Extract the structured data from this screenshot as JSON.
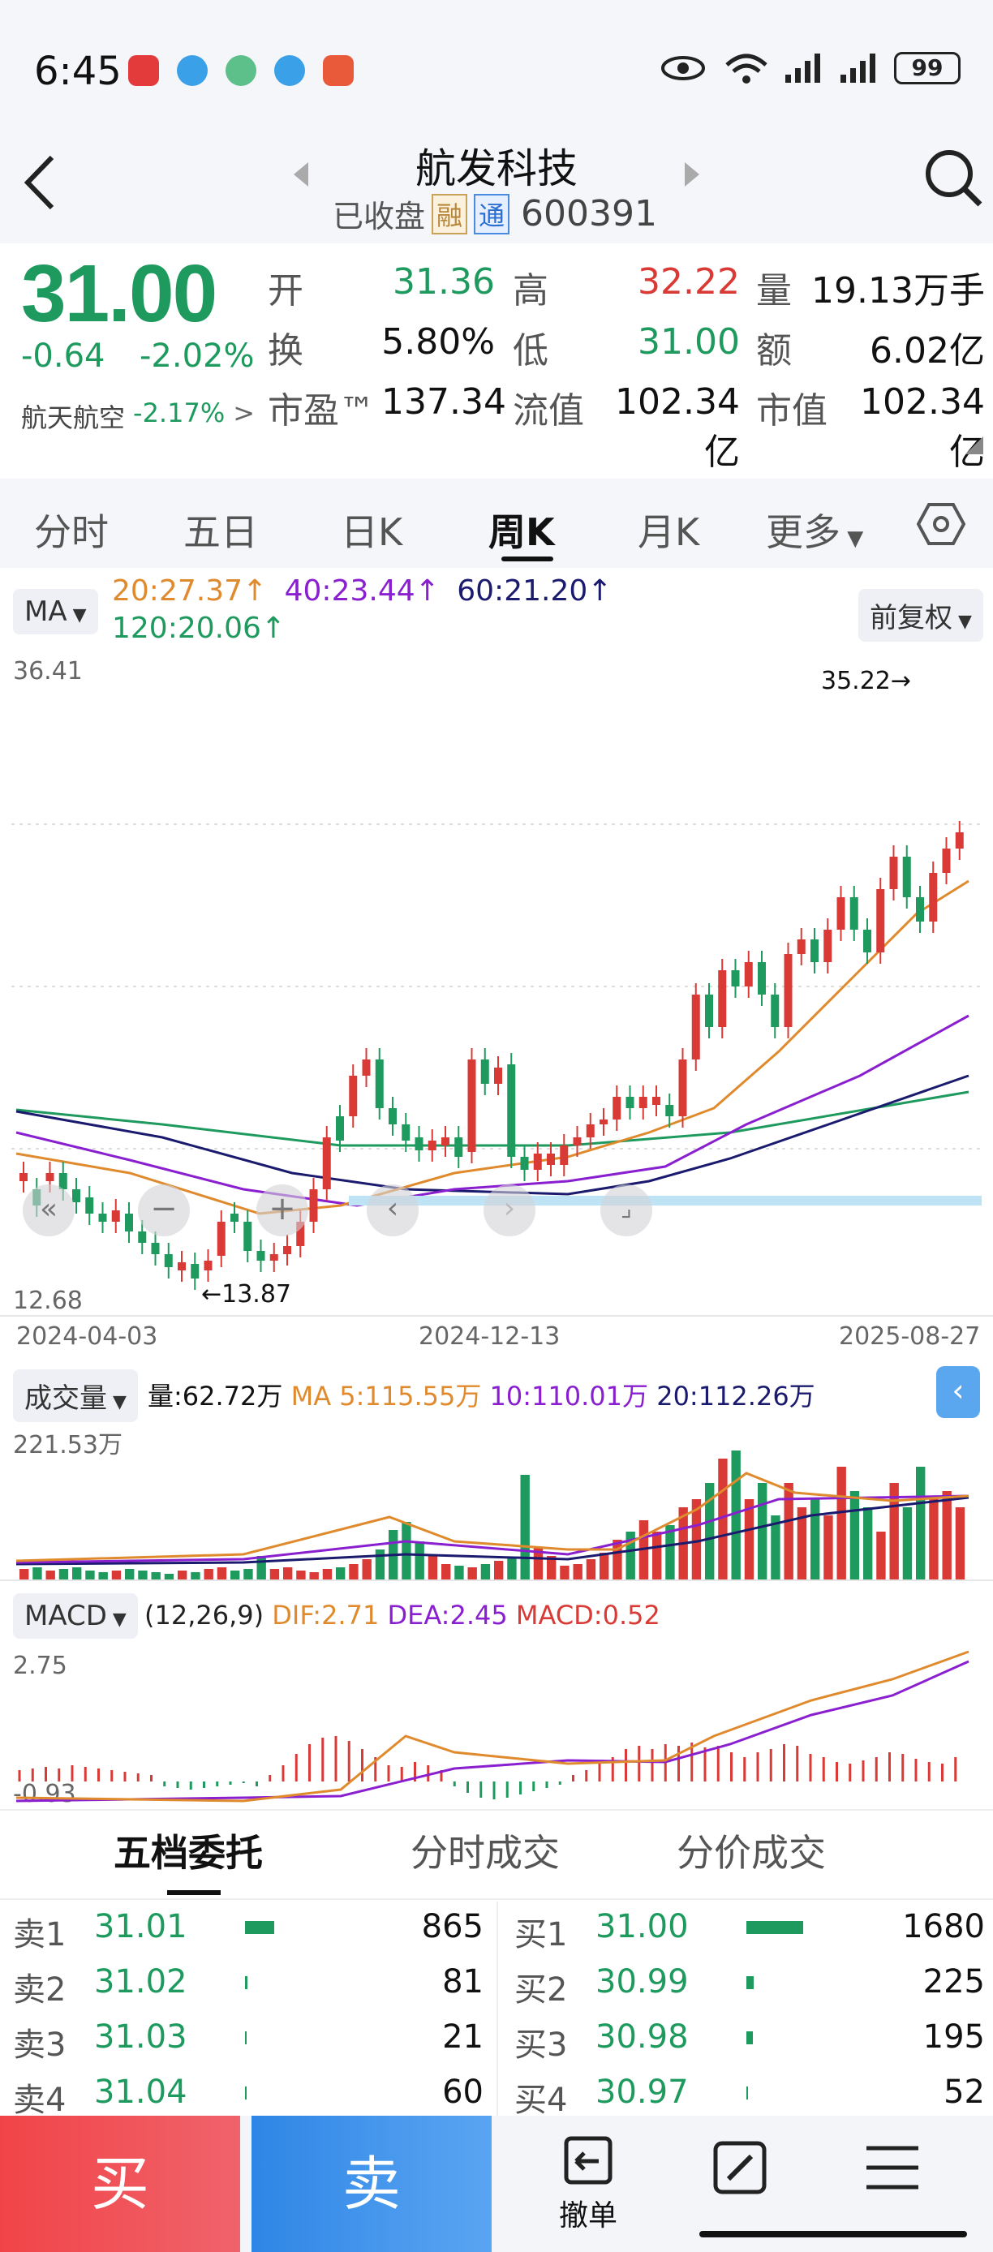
{
  "status": {
    "time": "6:45",
    "battery": "99",
    "signal_label": "6"
  },
  "header": {
    "stock_name": "航发科技",
    "market_status": "已收盘",
    "badge_rong": "融",
    "badge_tong": "通",
    "code": "600391"
  },
  "quote": {
    "price": "31.00",
    "change": "-0.64",
    "change_pct": "-2.02%",
    "sector_name": "航天航空",
    "sector_pct": "-2.17%",
    "sector_arrow": ">",
    "open_label": "开",
    "open": "31.36",
    "high_label": "高",
    "high": "32.22",
    "volume_label": "量",
    "volume": "19.13万手",
    "turnover_label": "换",
    "turnover": "5.80%",
    "low_label": "低",
    "low": "31.00",
    "amount_label": "额",
    "amount": "6.02亿",
    "pe_label": "市盈™",
    "pe": "137.34",
    "float_label": "流值",
    "float_value": "102.34亿",
    "mcap_label": "市值",
    "mcap": "102.34亿"
  },
  "tabs": [
    "分时",
    "五日",
    "日K",
    "周K",
    "月K",
    "更多"
  ],
  "active_tab": "周K",
  "ma_bar": {
    "ma_button": "MA",
    "ma20": "20:27.37",
    "ma40": "40:23.44",
    "ma60": "60:21.20",
    "ma120": "120:20.06",
    "adjust_button": "前复权",
    "up_arrow": "↑"
  },
  "kline": {
    "y_top": "36.41",
    "y_bottom": "12.68",
    "high_marker": "35.22→",
    "low_marker": "←13.87",
    "dates": [
      "2024-04-03",
      "2024-12-13",
      "2025-08-27"
    ]
  },
  "volume_panel": {
    "button": "成交量",
    "vol": "量:62.72万",
    "ma5": "MA 5:115.55万",
    "ma10": "10:110.01万",
    "ma20": "20:112.26万",
    "y_top": "221.53万"
  },
  "macd_panel": {
    "button": "MACD",
    "params": "(12,26,9)",
    "dif": "DIF:2.71",
    "dea": "DEA:2.45",
    "macd": "MACD:0.52",
    "y_top": "2.75",
    "y_bottom": "-0.93"
  },
  "orderbook_tabs": [
    "五档委托",
    "分时成交",
    "分价成交"
  ],
  "sell": [
    {
      "label": "卖1",
      "price": "31.01",
      "qty": "865"
    },
    {
      "label": "卖2",
      "price": "31.02",
      "qty": "81"
    },
    {
      "label": "卖3",
      "price": "31.03",
      "qty": "21"
    },
    {
      "label": "卖4",
      "price": "31.04",
      "qty": "60"
    }
  ],
  "buy": [
    {
      "label": "买1",
      "price": "31.00",
      "qty": "1680"
    },
    {
      "label": "买2",
      "price": "30.99",
      "qty": "225"
    },
    {
      "label": "买3",
      "price": "30.98",
      "qty": "195"
    },
    {
      "label": "买4",
      "price": "30.97",
      "qty": "52"
    }
  ],
  "bottom": {
    "buy": "买",
    "sell": "卖",
    "cancel": "撤单"
  },
  "colors": {
    "up": "#d93a35",
    "down": "#1e9a5e",
    "ma20": "#e08a2e",
    "ma40": "#8a1fd0",
    "ma60": "#1a1a6e",
    "ma120": "#1e9a5e"
  }
}
